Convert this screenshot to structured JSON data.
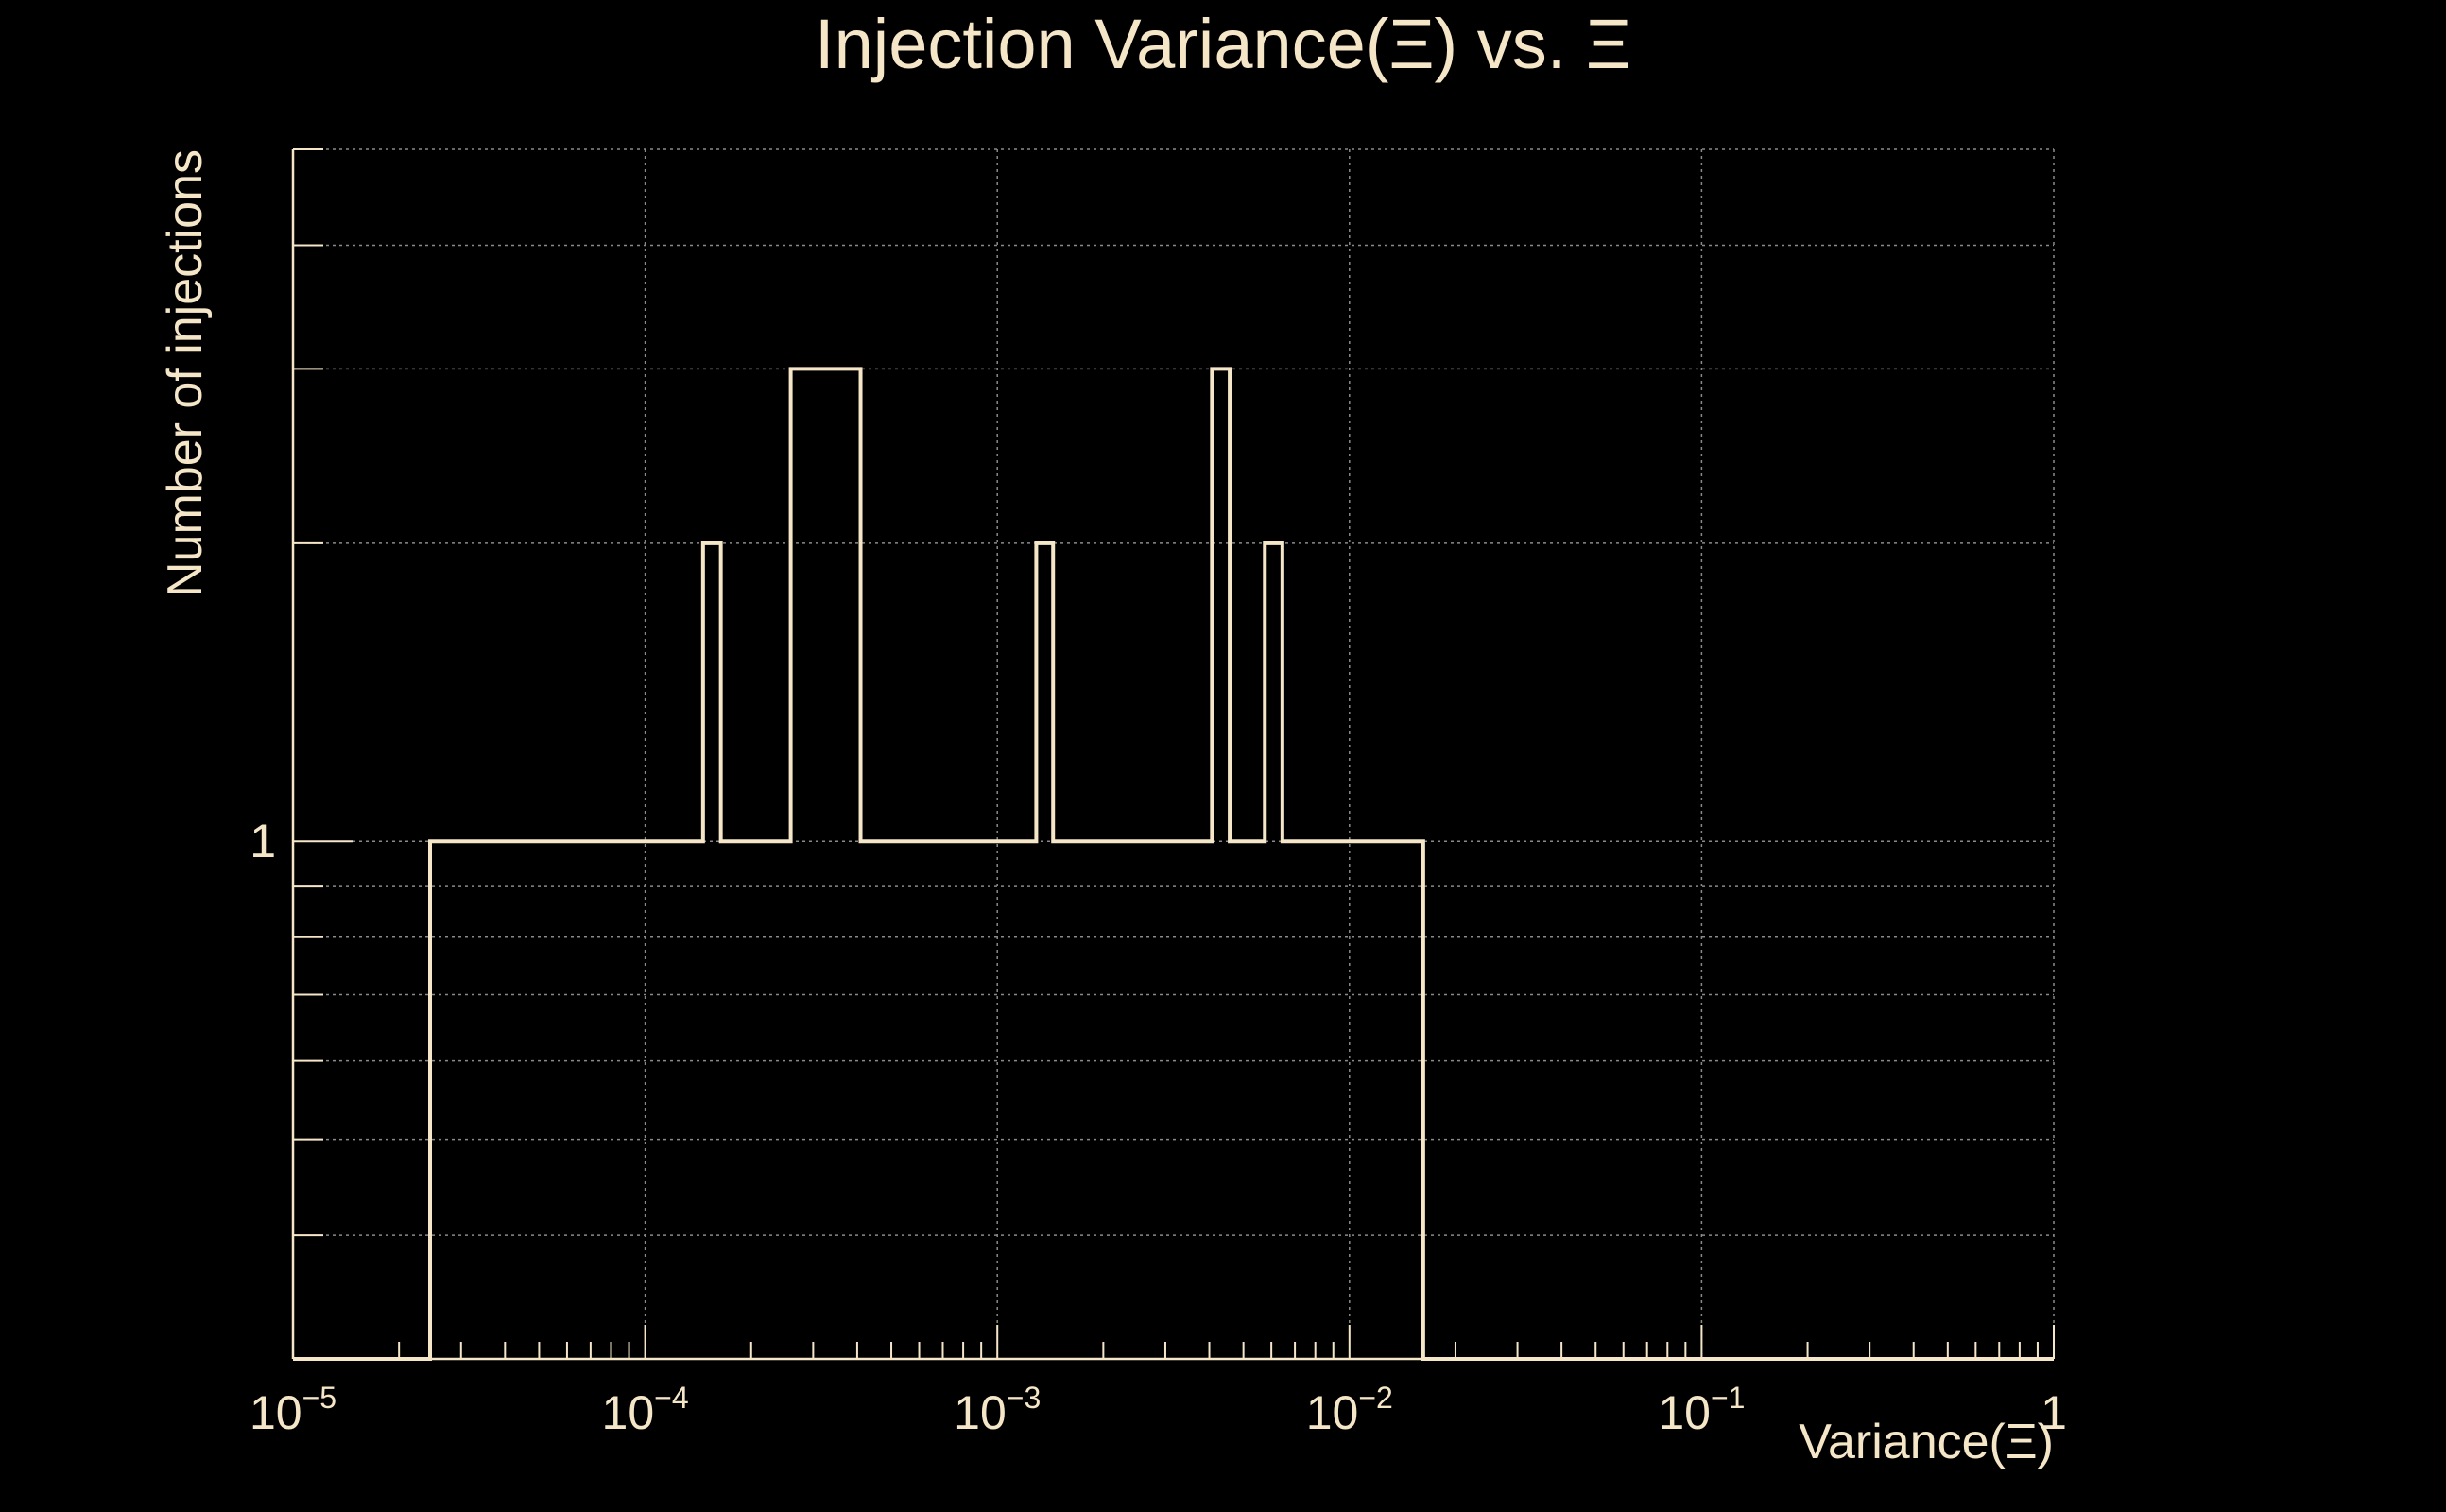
{
  "chart_data": {
    "type": "bar",
    "title": "Injection Variance(Ξ) vs. Ξ",
    "xlabel": "Variance(Ξ)",
    "ylabel": "Number of injections",
    "x_scale": "log",
    "y_scale": "log",
    "xlim": [
      1e-05,
      1
    ],
    "ylim": [
      0.3,
      5
    ],
    "grid": true,
    "legend": "none",
    "line_color": "#f5e6c8",
    "background_color": "#000000",
    "x_ticks": [
      {
        "value": 1e-05,
        "base": "10",
        "exp": "−5"
      },
      {
        "value": 0.0001,
        "base": "10",
        "exp": "−4"
      },
      {
        "value": 0.001,
        "base": "10",
        "exp": "−3"
      },
      {
        "value": 0.01,
        "base": "10",
        "exp": "−2"
      },
      {
        "value": 0.1,
        "base": "10",
        "exp": "−1"
      },
      {
        "value": 1,
        "base": "1",
        "exp": ""
      }
    ],
    "y_ticks": [
      {
        "value": 1,
        "label": "1"
      }
    ],
    "bins": [
      {
        "x_low": 2.45e-05,
        "x_high": 2.75e-05,
        "count": 1
      },
      {
        "x_low": 0.000117,
        "x_high": 0.000131,
        "count": 1
      },
      {
        "x_low": 0.000146,
        "x_high": 0.000164,
        "count": 2
      },
      {
        "x_low": 0.000164,
        "x_high": 0.000184,
        "count": 1
      },
      {
        "x_low": 0.000231,
        "x_high": 0.000259,
        "count": 1
      },
      {
        "x_low": 0.000259,
        "x_high": 0.000291,
        "count": 3
      },
      {
        "x_low": 0.000409,
        "x_high": 0.000515,
        "count": 1
      },
      {
        "x_low": 0.000577,
        "x_high": 0.000647,
        "count": 1
      },
      {
        "x_low": 0.000913,
        "x_high": 0.00102,
        "count": 1
      },
      {
        "x_low": 0.00115,
        "x_high": 0.00129,
        "count": 1
      },
      {
        "x_low": 0.00129,
        "x_high": 0.00144,
        "count": 2
      },
      {
        "x_low": 0.00144,
        "x_high": 0.00162,
        "count": 1
      },
      {
        "x_low": 0.00182,
        "x_high": 0.00204,
        "count": 1
      },
      {
        "x_low": 0.00229,
        "x_high": 0.00363,
        "count": 1
      },
      {
        "x_low": 0.00407,
        "x_high": 0.00457,
        "count": 3
      },
      {
        "x_low": 0.00457,
        "x_high": 0.00512,
        "count": 1
      },
      {
        "x_low": 0.00575,
        "x_high": 0.00645,
        "count": 2
      },
      {
        "x_low": 0.00645,
        "x_high": 0.00723,
        "count": 1
      },
      {
        "x_low": 0.0091,
        "x_high": 0.0115,
        "count": 1
      },
      {
        "x_low": 0.0129,
        "x_high": 0.0162,
        "count": 1
      }
    ]
  }
}
